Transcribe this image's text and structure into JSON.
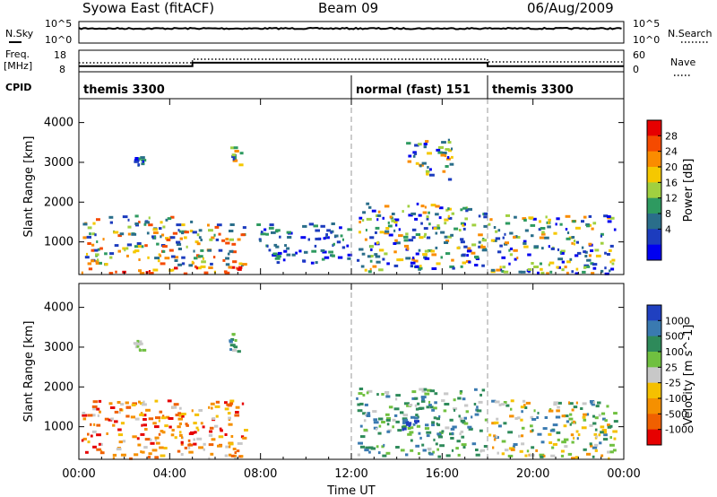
{
  "header": {
    "station": "Syowa East (fitACF)",
    "beam": "Beam 09",
    "date": "06/Aug/2009"
  },
  "status_panels": {
    "nsky_label": "N.Sky",
    "nsearch_label": "N.Search",
    "nsky_ticks": [
      "10^5",
      "10^0"
    ],
    "nsearch_ticks": [
      "10^5",
      "10^0"
    ],
    "freq_label": "Freq.",
    "freq_unit": "[MHz]",
    "freq_ticks": [
      "18",
      "8"
    ],
    "nave_label": "Nave",
    "nave_ticks": [
      "60",
      "0"
    ],
    "cpid_label": "CPID",
    "cpid_segments": [
      {
        "label": "themis 3300",
        "start_h": 0,
        "end_h": 12
      },
      {
        "label": "normal (fast) 151",
        "start_h": 12,
        "end_h": 18
      },
      {
        "label": "themis 3300",
        "start_h": 18,
        "end_h": 24
      }
    ],
    "freq_steps_mhz": [
      [
        0,
        10.6
      ],
      [
        5,
        12.2
      ],
      [
        18,
        10.6
      ],
      [
        24,
        10.6
      ]
    ]
  },
  "x_axis": {
    "label": "Time UT",
    "ticks": [
      "00:00",
      "04:00",
      "08:00",
      "12:00",
      "16:00",
      "20:00",
      "00:00"
    ],
    "tick_hours": [
      0,
      4,
      8,
      12,
      16,
      20,
      24
    ]
  },
  "chart_data": [
    {
      "type": "heatmap",
      "title": "Power",
      "xlabel": "Time UT",
      "ylabel": "Slant Range [km]",
      "xlim_hours": [
        0,
        24
      ],
      "ylim_km": [
        180,
        4600
      ],
      "yticks": [
        1000,
        2000,
        3000,
        4000
      ],
      "colorbar_label": "Power [dB]",
      "colorbar_ticks": [
        "28",
        "24",
        "20",
        "16",
        "12",
        "8",
        "4"
      ],
      "colorbar_colors": [
        "#e60000",
        "#f54a00",
        "#fa8c00",
        "#f5c800",
        "#a0d040",
        "#2e9a60",
        "#2a6e8a",
        "#1c3cbe",
        "#0000f0"
      ],
      "echo_regions": [
        {
          "t": [
            0.1,
            7.3
          ],
          "r": [
            230,
            430
          ],
          "level": "high"
        },
        {
          "t": [
            0.1,
            5.2
          ],
          "r": [
            430,
            1700
          ],
          "level": "mid"
        },
        {
          "t": [
            5.2,
            7.3
          ],
          "r": [
            430,
            1500
          ],
          "level": "mid"
        },
        {
          "t": [
            2.4,
            2.8
          ],
          "r": [
            2950,
            3200
          ],
          "level": "low"
        },
        {
          "t": [
            6.6,
            7.1
          ],
          "r": [
            2900,
            3450
          ],
          "level": "mid"
        },
        {
          "t": [
            7.8,
            11.9
          ],
          "r": [
            500,
            1500
          ],
          "level": "low"
        },
        {
          "t": [
            12.2,
            17.9
          ],
          "r": [
            280,
            2000
          ],
          "level": "mixed"
        },
        {
          "t": [
            14.4,
            16.4
          ],
          "r": [
            2600,
            3600
          ],
          "level": "mixed"
        },
        {
          "t": [
            18.0,
            23.6
          ],
          "r": [
            230,
            1700
          ],
          "level": "mixed"
        }
      ]
    },
    {
      "type": "heatmap",
      "title": "Velocity",
      "xlabel": "Time UT",
      "ylabel": "Slant Range [km]",
      "xlim_hours": [
        0,
        24
      ],
      "ylim_km": [
        180,
        4600
      ],
      "yticks": [
        1000,
        2000,
        3000,
        4000
      ],
      "colorbar_label": "Velocity [m s^-1]",
      "colorbar_ticks": [
        "1000",
        "500",
        "100",
        "25",
        "-25",
        "-100",
        "-500",
        "-1000"
      ],
      "colorbar_colors": [
        "#2040c0",
        "#3a7ab0",
        "#2e8a5a",
        "#70c040",
        "#c8c8c8",
        "#f5c000",
        "#f59000",
        "#f06000",
        "#e60000"
      ],
      "echo_regions": [
        {
          "t": [
            0.1,
            7.3
          ],
          "r": [
            230,
            1700
          ],
          "level": "negative"
        },
        {
          "t": [
            2.4,
            2.8
          ],
          "r": [
            2950,
            3200
          ],
          "level": "zero"
        },
        {
          "t": [
            6.6,
            7.1
          ],
          "r": [
            2900,
            3450
          ],
          "level": "positive"
        },
        {
          "t": [
            12.2,
            17.9
          ],
          "r": [
            280,
            2000
          ],
          "level": "positive"
        },
        {
          "t": [
            14.2,
            14.8
          ],
          "r": [
            950,
            1200
          ],
          "level": "strong-positive"
        },
        {
          "t": [
            18.0,
            23.6
          ],
          "r": [
            230,
            1700
          ],
          "level": "mixed"
        }
      ]
    }
  ]
}
